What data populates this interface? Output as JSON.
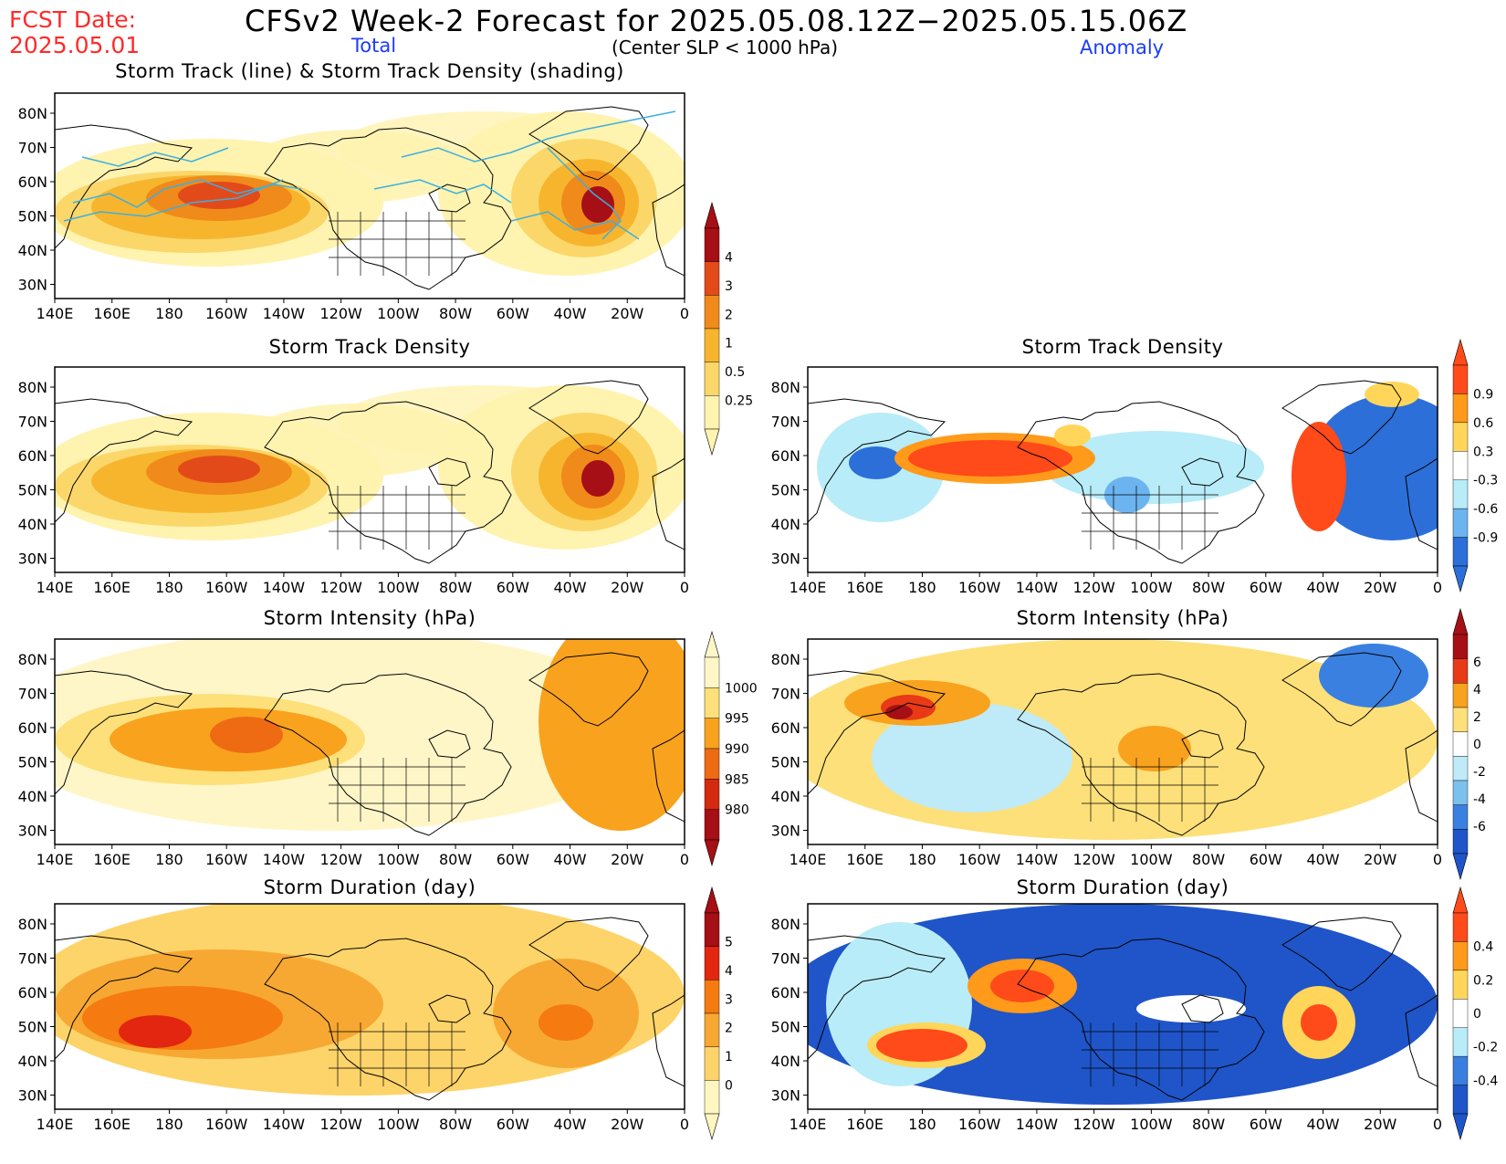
{
  "header": {
    "fcst_label": "FCST Date:",
    "fcst_date": "2025.05.01",
    "title": "CFSv2 Week-2 Forecast for 2025.05.08.12Z−2025.05.15.06Z",
    "subtitle": "(Center SLP < 1000 hPa)",
    "total_label": "Total",
    "anomaly_label": "Anomaly"
  },
  "axes": {
    "lon_ticks": [
      "140E",
      "160E",
      "180",
      "160W",
      "140W",
      "120W",
      "100W",
      "80W",
      "60W",
      "40W",
      "20W",
      "0"
    ],
    "lat_ticks": [
      "80N",
      "70N",
      "60N",
      "50N",
      "40N",
      "30N"
    ]
  },
  "panels": [
    {
      "id": "track",
      "title": "Storm Track (line) & Storm Track Density (shading)"
    },
    {
      "id": "density_total",
      "title": "Storm Track Density"
    },
    {
      "id": "density_anom",
      "title": "Storm Track Density"
    },
    {
      "id": "intensity_total",
      "title": "Storm Intensity (hPa)"
    },
    {
      "id": "intensity_anom",
      "title": "Storm Intensity (hPa)"
    },
    {
      "id": "duration_total",
      "title": "Storm Duration (day)"
    },
    {
      "id": "duration_anom",
      "title": "Storm Duration (day)"
    }
  ],
  "colorbars": {
    "density_total": {
      "labels": [
        "4",
        "3",
        "2",
        "1",
        "0.5",
        "0.25"
      ],
      "colors": [
        "#a50f15",
        "#e34a1a",
        "#f08a1a",
        "#f7b52e",
        "#fbd76a",
        "#fff3b0"
      ]
    },
    "density_anom": {
      "labels": [
        "0.9",
        "0.6",
        "0.3",
        "-0.3",
        "-0.6",
        "-0.9"
      ],
      "colors": [
        "#ff4a1a",
        "#ff9a1a",
        "#ffd65a",
        "#ffffff",
        "#b8ecf8",
        "#6cb4f0",
        "#2c6fd8"
      ]
    },
    "intensity_total": {
      "labels": [
        "1000",
        "995",
        "990",
        "985",
        "980"
      ],
      "colors": [
        "#fff6c8",
        "#fde07a",
        "#f9a21e",
        "#ee6b14",
        "#d42a10",
        "#a50f15"
      ]
    },
    "intensity_anom": {
      "labels": [
        "6",
        "4",
        "2",
        "0",
        "-2",
        "-4",
        "-6"
      ],
      "colors": [
        "#a50f15",
        "#e83a16",
        "#f9a21e",
        "#fde07a",
        "#ffffff",
        "#bfeaf7",
        "#7cc0ee",
        "#3a80e0",
        "#1f55c8"
      ]
    },
    "duration_total": {
      "labels": [
        "5",
        "4",
        "3",
        "2",
        "1",
        "0"
      ],
      "colors": [
        "#a50f15",
        "#e2260f",
        "#f57a10",
        "#f7a832",
        "#fdd46a",
        "#fff6c0"
      ]
    },
    "duration_anom": {
      "labels": [
        "0.4",
        "0.2",
        "0",
        "-0.2",
        "-0.4"
      ],
      "colors": [
        "#ff4a1a",
        "#ff9a1a",
        "#ffd65a",
        "#ffffff",
        "#b8ecf8",
        "#3a7ee0",
        "#1f55c8"
      ]
    }
  }
}
